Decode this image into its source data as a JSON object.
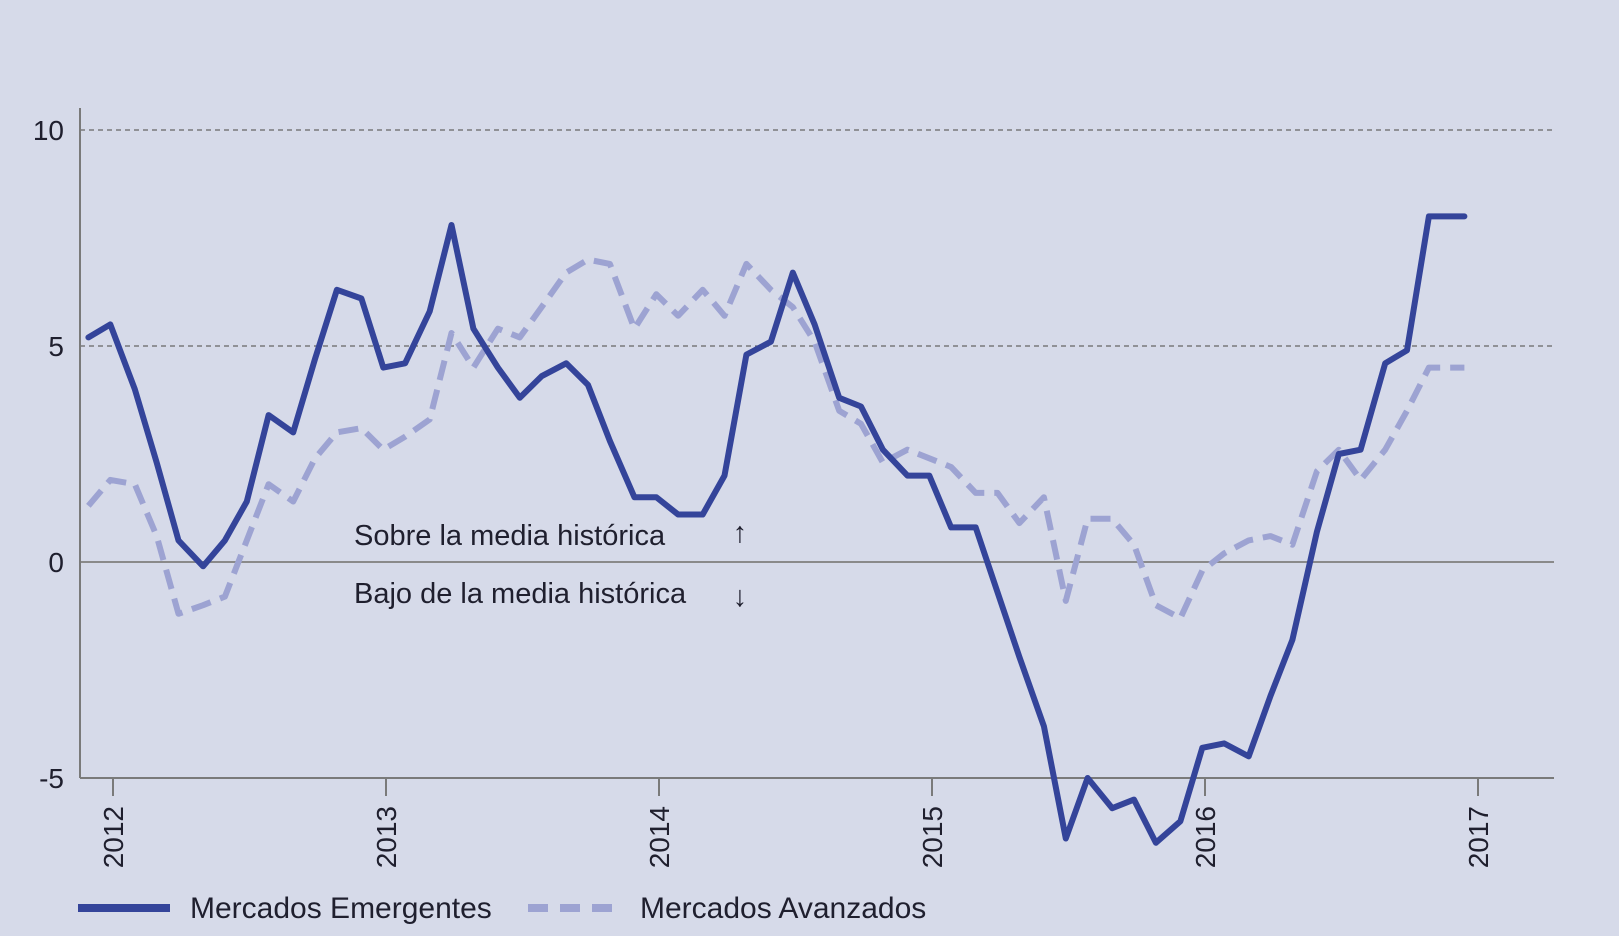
{
  "colors": {
    "background": "#d6dae9",
    "emergentes": "#34449a",
    "avanzados": "#9da3d2",
    "axis": "#7a7a7a",
    "grid": "#666666"
  },
  "chart_data": {
    "type": "line",
    "title": "",
    "xlabel": "",
    "ylabel": "",
    "ylim": [
      -5,
      10
    ],
    "xlim": [
      2012,
      2017
    ],
    "yticks": [
      10,
      5,
      0,
      -5
    ],
    "ytick_labels": [
      "10",
      "5",
      "0",
      "-5"
    ],
    "xticks": [
      2012,
      2013,
      2014,
      2015,
      2016,
      2017
    ],
    "xtick_labels": [
      "2012",
      "2013",
      "2014",
      "2015",
      "2016",
      "2017"
    ],
    "grid": "horizontal dashed at 5 and 10",
    "legend_position": "bottom-left",
    "annotations": {
      "above": "Sobre la media histórica",
      "below": "Bajo de la media histórica",
      "arrow_up": "↑",
      "arrow_down": "↓"
    },
    "series": [
      {
        "name": "Mercados Emergentes",
        "style": "solid",
        "x": [
          2011.91,
          2011.99,
          2012.08,
          2012.16,
          2012.24,
          2012.33,
          2012.41,
          2012.49,
          2012.57,
          2012.66,
          2012.74,
          2012.82,
          2012.91,
          2012.99,
          2013.07,
          2013.16,
          2013.24,
          2013.32,
          2013.41,
          2013.49,
          2013.57,
          2013.66,
          2013.74,
          2013.82,
          2013.91,
          2013.99,
          2014.07,
          2014.16,
          2014.24,
          2014.32,
          2014.41,
          2014.49,
          2014.57,
          2014.66,
          2014.74,
          2014.82,
          2014.91,
          2014.99,
          2015.07,
          2015.16,
          2015.24,
          2015.32,
          2015.41,
          2015.49,
          2015.57,
          2015.66,
          2015.74,
          2015.82,
          2015.91,
          2015.99,
          2016.07,
          2016.16,
          2016.24,
          2016.32,
          2016.41,
          2016.49,
          2016.57,
          2016.66,
          2016.74,
          2016.82,
          2016.91,
          2016.95
        ],
        "values": [
          5.2,
          5.5,
          4.0,
          2.3,
          0.5,
          -0.1,
          0.5,
          1.4,
          3.4,
          3.0,
          4.7,
          6.3,
          6.1,
          4.5,
          4.6,
          5.8,
          7.8,
          5.4,
          4.5,
          3.8,
          4.3,
          4.6,
          4.1,
          2.8,
          1.5,
          1.5,
          1.1,
          1.1,
          2.0,
          4.8,
          5.1,
          6.7,
          5.5,
          3.8,
          3.6,
          2.6,
          2.0,
          2.0,
          0.8,
          0.8,
          -0.7,
          -2.2,
          -3.8,
          -6.4,
          -5.0,
          -5.7,
          -5.5,
          -6.5,
          -6.0,
          -4.3,
          -4.2,
          -4.5,
          -3.1,
          -1.8,
          0.7,
          2.5,
          2.6,
          4.6,
          4.9,
          8.0,
          8.0,
          8.0
        ]
      },
      {
        "name": "Mercados Avanzados",
        "style": "dashed",
        "x": [
          2011.91,
          2011.99,
          2012.08,
          2012.16,
          2012.24,
          2012.33,
          2012.41,
          2012.49,
          2012.57,
          2012.66,
          2012.74,
          2012.82,
          2012.91,
          2012.99,
          2013.07,
          2013.16,
          2013.24,
          2013.32,
          2013.41,
          2013.49,
          2013.57,
          2013.66,
          2013.74,
          2013.82,
          2013.91,
          2013.99,
          2014.07,
          2014.16,
          2014.24,
          2014.32,
          2014.41,
          2014.49,
          2014.57,
          2014.66,
          2014.74,
          2014.82,
          2014.91,
          2014.99,
          2015.07,
          2015.16,
          2015.24,
          2015.32,
          2015.41,
          2015.49,
          2015.57,
          2015.66,
          2015.74,
          2015.82,
          2015.91,
          2015.99,
          2016.07,
          2016.16,
          2016.24,
          2016.32,
          2016.41,
          2016.49,
          2016.57,
          2016.66,
          2016.74,
          2016.82,
          2016.91,
          2016.95
        ],
        "values": [
          1.3,
          1.9,
          1.8,
          0.6,
          -1.2,
          -1.0,
          -0.8,
          0.5,
          1.8,
          1.4,
          2.4,
          3.0,
          3.1,
          2.6,
          2.9,
          3.3,
          5.3,
          4.5,
          5.4,
          5.2,
          5.9,
          6.7,
          7.0,
          6.9,
          5.4,
          6.2,
          5.7,
          6.3,
          5.7,
          6.9,
          6.3,
          5.9,
          5.1,
          3.5,
          3.2,
          2.3,
          2.6,
          2.4,
          2.2,
          1.6,
          1.6,
          0.9,
          1.5,
          -0.9,
          1.0,
          1.0,
          0.4,
          -1.0,
          -1.3,
          -0.2,
          0.2,
          0.5,
          0.6,
          0.4,
          2.1,
          2.6,
          1.9,
          2.6,
          3.5,
          4.5,
          4.5,
          4.5
        ]
      }
    ]
  }
}
